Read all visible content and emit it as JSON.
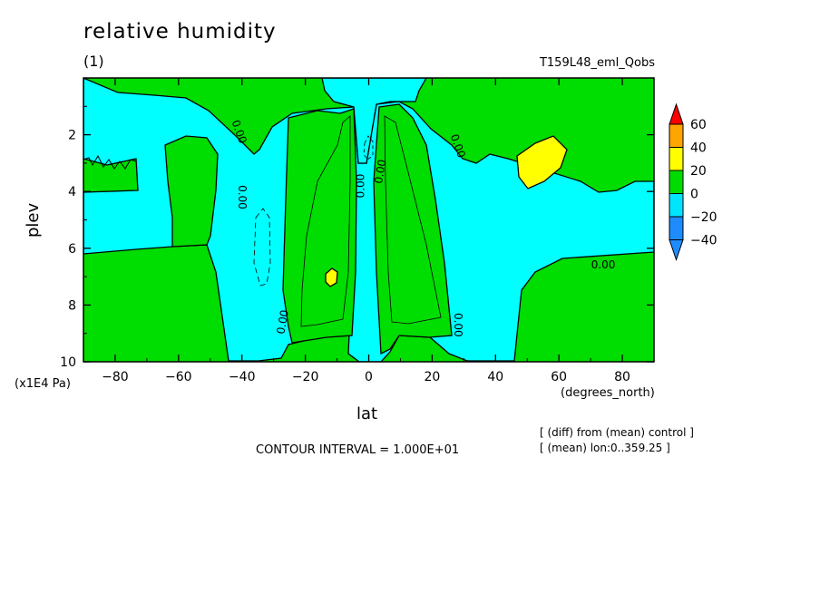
{
  "chart_data": {
    "type": "heatmap",
    "title": "relative humidity",
    "subtitle": "(1)",
    "run_label": "T159L48_eml_Qobs",
    "xlabel": "lat",
    "ylabel": "plev",
    "x_unit": "(degrees_north)",
    "y_unit": "(x1E4 Pa)",
    "xlim": [
      -90,
      90
    ],
    "ylim": [
      10,
      0
    ],
    "x_ticks": [
      -80,
      -60,
      -40,
      -20,
      0,
      20,
      40,
      60,
      80
    ],
    "x_tick_labels": [
      "−80",
      "−60",
      "−40",
      "−20",
      "0",
      "20",
      "40",
      "60",
      "80"
    ],
    "y_ticks": [
      2,
      4,
      6,
      8,
      10
    ],
    "y_tick_labels": [
      "2",
      "4",
      "6",
      "8",
      "10"
    ],
    "contour_interval_text": "CONTOUR INTERVAL = 1.000E+01",
    "notes": [
      "[ (diff) from (mean) control ]",
      "[ (mean) lon:0..359.25 ]"
    ],
    "contour_labels": [
      {
        "text": "0.00",
        "lat": -40,
        "plev": 4.2,
        "rotate": 90
      },
      {
        "text": "0.00",
        "lat": -41,
        "plev": 1.9,
        "rotate": 70
      },
      {
        "text": "0.00",
        "lat": -27,
        "plev": 8.6,
        "rotate": -80
      },
      {
        "text": "0.00",
        "lat": -2.5,
        "plev": 3.8,
        "rotate": -90
      },
      {
        "text": "0.00",
        "lat": 3.8,
        "plev": 3.3,
        "rotate": -80
      },
      {
        "text": "0.00",
        "lat": 28,
        "plev": 2.4,
        "rotate": 70
      },
      {
        "text": "0.00",
        "lat": 28,
        "plev": 8.7,
        "rotate": 90
      },
      {
        "text": "0.00",
        "lat": 74,
        "plev": 6.6,
        "rotate": 0
      }
    ],
    "colorbar": {
      "levels": [
        -40,
        -20,
        0,
        20,
        40,
        60
      ],
      "level_labels": [
        "−40",
        "−20",
        "0",
        "20",
        "40",
        "60"
      ],
      "colors": [
        "#1e8cff",
        "#00e5ff",
        "#00dc00",
        "#ffff00",
        "#ffa500",
        "#ff0000"
      ],
      "extend": "both"
    },
    "fill_colors": {
      "negative_0_20": "#00ffff",
      "positive_0_20": "#00dd00",
      "positive_20_40": "#ffff00"
    },
    "grid": false
  }
}
